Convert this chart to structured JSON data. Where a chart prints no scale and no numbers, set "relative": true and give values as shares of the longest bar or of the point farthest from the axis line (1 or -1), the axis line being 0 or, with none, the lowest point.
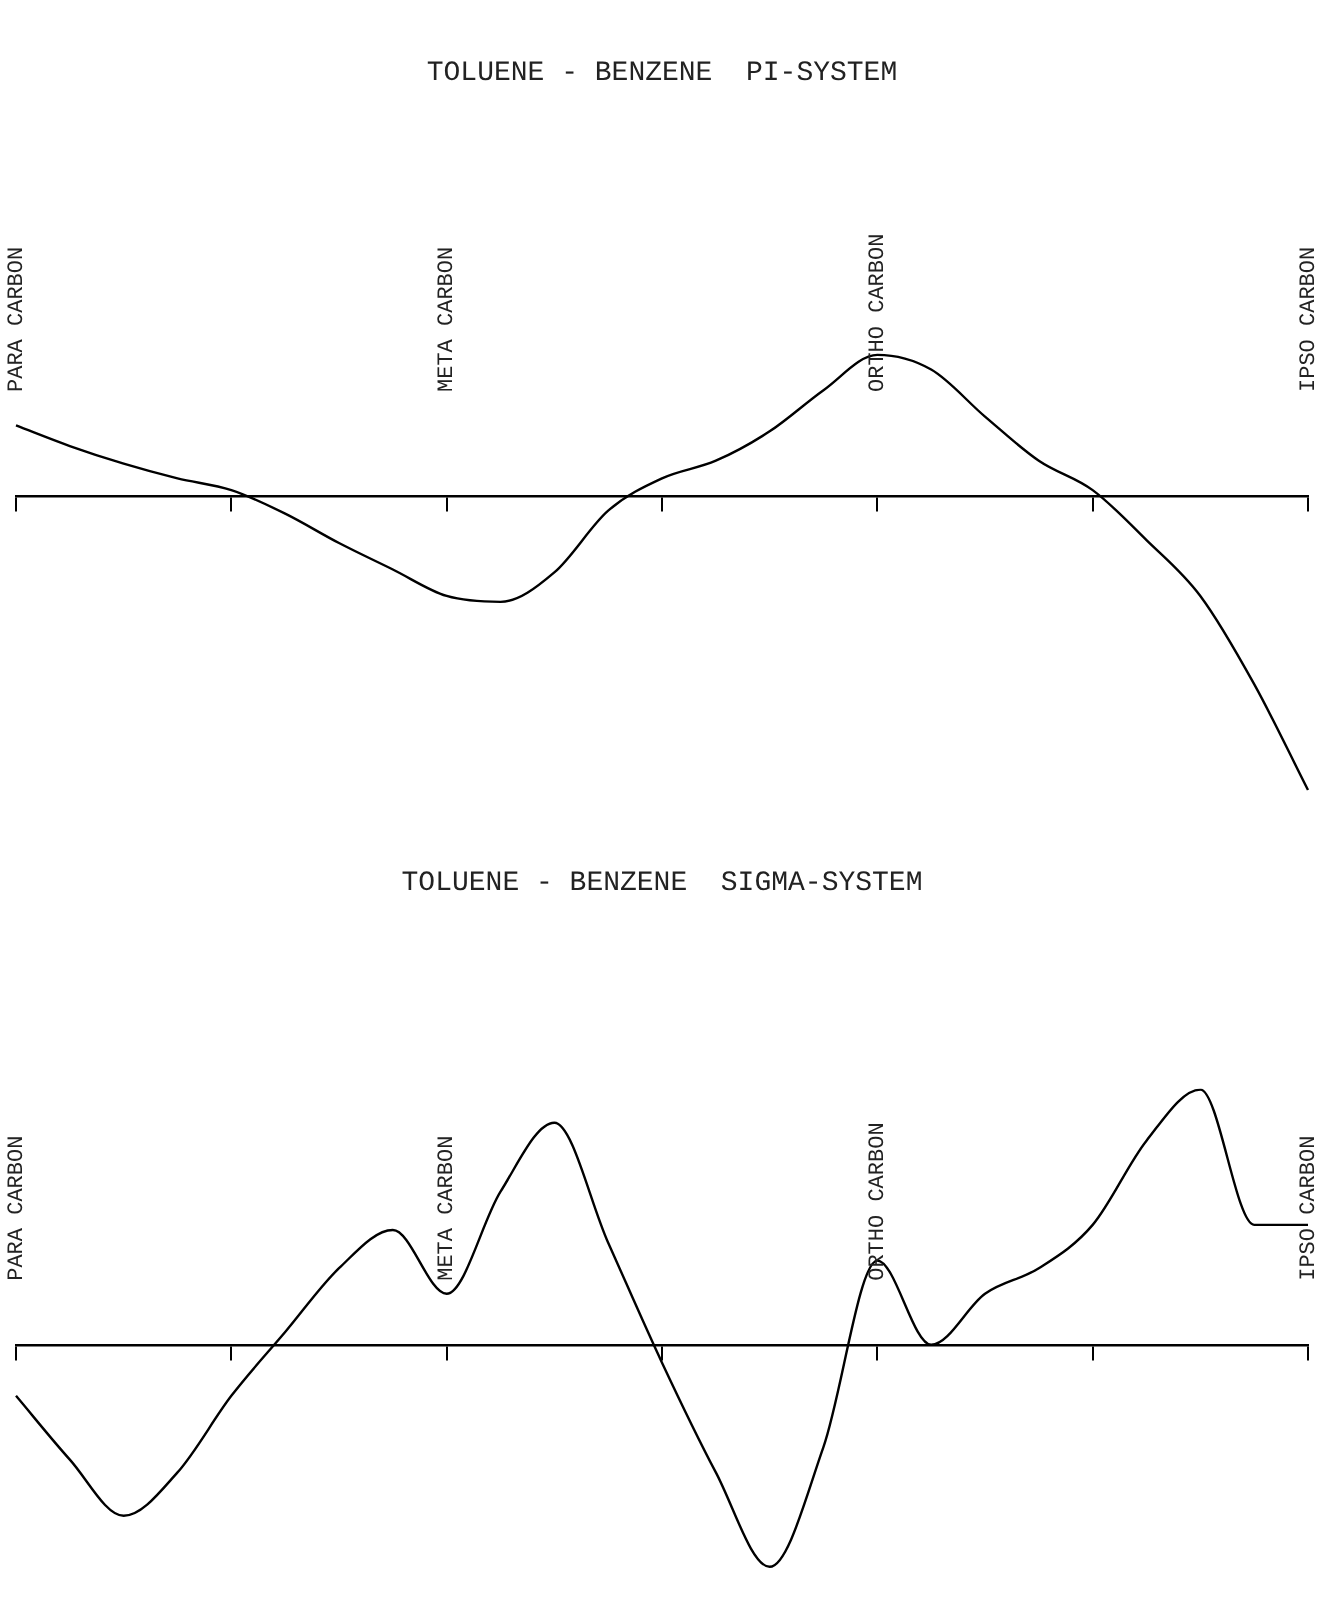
{
  "chart_data": [
    {
      "type": "line",
      "title": "TOLUENE - BENZENE  PI-SYSTEM",
      "relative": true,
      "categories": [
        "PARA CARBON",
        null,
        null,
        null,
        null,
        null,
        null,
        null,
        "META CARBON",
        null,
        null,
        null,
        null,
        null,
        null,
        null,
        "ORTHO CARBON",
        null,
        null,
        null,
        null,
        null,
        null,
        null,
        "IPSO CARBON"
      ],
      "series": [
        {
          "color": "#000000",
          "values": [
            0.24,
            0.17,
            0.11,
            0.06,
            0.02,
            -0.06,
            -0.16,
            -0.25,
            -0.34,
            -0.36,
            -0.26,
            -0.05,
            0.06,
            0.12,
            0.22,
            0.36,
            0.48,
            0.43,
            0.27,
            0.12,
            0.02,
            -0.15,
            -0.34,
            -0.64,
            -1
          ]
        }
      ]
    },
    {
      "type": "line",
      "title": "TOLUENE - BENZENE  SIGMA-SYSTEM",
      "relative": true,
      "categories": [
        "PARA CARBON",
        null,
        null,
        null,
        null,
        null,
        null,
        null,
        "META CARBON",
        null,
        null,
        null,
        null,
        null,
        null,
        null,
        "ORTHO CARBON",
        null,
        null,
        null,
        null,
        null,
        null,
        null,
        "IPSO CARBON"
      ],
      "series": [
        {
          "color": "#000000",
          "values": [
            -0.2,
            -0.45,
            -0.67,
            -0.5,
            -0.2,
            0.05,
            0.3,
            0.45,
            0.2,
            0.6,
            0.87,
            0.4,
            -0.07,
            -0.5,
            -0.87,
            -0.4,
            0.33,
            0,
            0.2,
            0.3,
            0.47,
            0.8,
            1,
            0.47,
            0.47
          ]
        }
      ]
    }
  ]
}
